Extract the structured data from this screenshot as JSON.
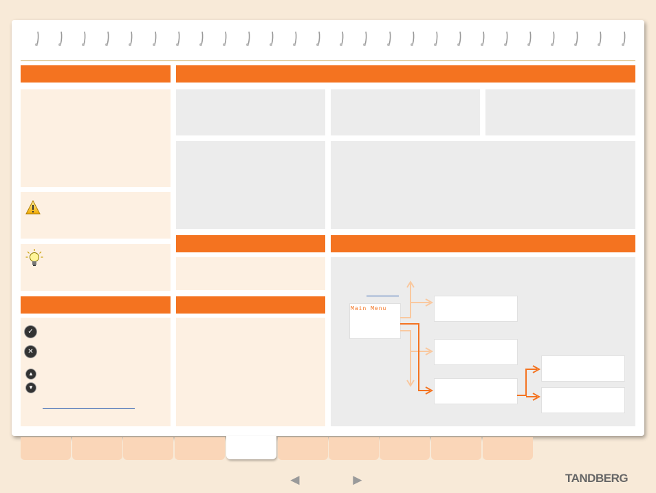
{
  "menu": {
    "main_menu_label": "Main Menu"
  },
  "footer": {
    "logo_text": "TANDBERG",
    "prev_arrow": "◄",
    "next_arrow": "►"
  },
  "icons": {
    "ok": "✓",
    "cancel": "✕",
    "up": "▲",
    "down": "▼"
  },
  "tabs": [
    {
      "label": ""
    },
    {
      "label": ""
    },
    {
      "label": ""
    },
    {
      "label": ""
    },
    {
      "label": ""
    },
    {
      "label": ""
    },
    {
      "label": ""
    },
    {
      "label": ""
    },
    {
      "label": ""
    },
    {
      "label": ""
    }
  ],
  "colors": {
    "accent": "#f47320",
    "cream": "#fdf0e2",
    "grey": "#ececec",
    "arrow_light": "#f9c89f"
  }
}
